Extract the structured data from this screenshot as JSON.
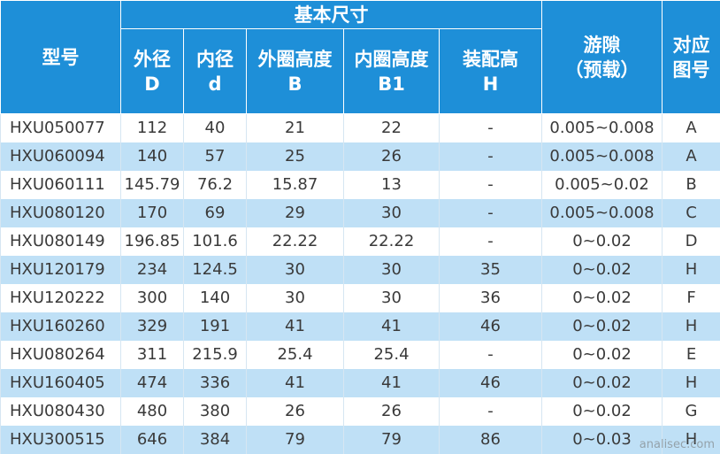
{
  "header": {
    "model": "型号",
    "basic": "基本尺寸",
    "columns": [
      [
        "外径",
        "D"
      ],
      [
        "内径",
        "d"
      ],
      [
        "外圈高度",
        "B"
      ],
      [
        "内圈高度",
        "B1"
      ],
      [
        "装配高",
        "H"
      ]
    ],
    "clearance": [
      "游隙",
      "（预载）"
    ],
    "figure": [
      "对应",
      "图号"
    ]
  },
  "table": {
    "rows": [
      [
        "HXU050077",
        "112",
        "40",
        "21",
        "22",
        "-",
        "0.005~0.008",
        "A"
      ],
      [
        "HXU060094",
        "140",
        "57",
        "25",
        "26",
        "-",
        "0.005~0.008",
        "A"
      ],
      [
        "HXU060111",
        "145.79",
        "76.2",
        "15.87",
        "13",
        "-",
        "0.005~0.02",
        "B"
      ],
      [
        "HXU080120",
        "170",
        "69",
        "29",
        "30",
        "-",
        "0.005~0.008",
        "C"
      ],
      [
        "HXU080149",
        "196.85",
        "101.6",
        "22.22",
        "22.22",
        "-",
        "0~0.02",
        "D"
      ],
      [
        "HXU120179",
        "234",
        "124.5",
        "30",
        "30",
        "35",
        "0~0.02",
        "H"
      ],
      [
        "HXU120222",
        "300",
        "140",
        "30",
        "30",
        "36",
        "0~0.02",
        "F"
      ],
      [
        "HXU160260",
        "329",
        "191",
        "41",
        "41",
        "46",
        "0~0.02",
        "H"
      ],
      [
        "HXU080264",
        "311",
        "215.9",
        "25.4",
        "25.4",
        "-",
        "0~0.02",
        "E"
      ],
      [
        "HXU160405",
        "474",
        "336",
        "41",
        "41",
        "46",
        "0~0.02",
        "H"
      ],
      [
        "HXU080430",
        "480",
        "380",
        "26",
        "26",
        "-",
        "0~0.02",
        "G"
      ],
      [
        "HXU300515",
        "646",
        "384",
        "79",
        "79",
        "86",
        "0~0.03",
        "H"
      ]
    ]
  },
  "watermark": "analisec.com"
}
